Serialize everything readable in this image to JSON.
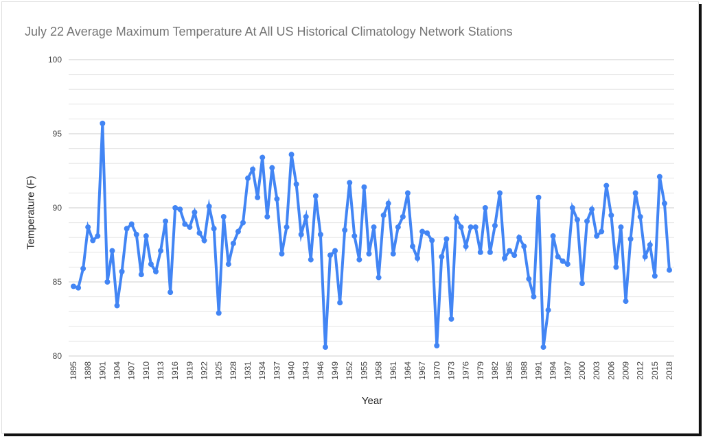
{
  "chart_data": {
    "type": "line",
    "title": "July 22 Average Maximum Temperature At All US Historical Climatology Network Stations",
    "xlabel": "Year",
    "ylabel": "Temperature (F)",
    "ylim": [
      80,
      100
    ],
    "yticks": [
      "80",
      "85",
      "90",
      "95",
      "100"
    ],
    "xticks": [
      "1895",
      "1898",
      "1901",
      "1904",
      "1907",
      "1910",
      "1913",
      "1916",
      "1919",
      "1922",
      "1925",
      "1928",
      "1931",
      "1934",
      "1937",
      "1940",
      "1943",
      "1946",
      "1949",
      "1952",
      "1955",
      "1958",
      "1961",
      "1964",
      "1967",
      "1970",
      "1973",
      "1976",
      "1979",
      "1982",
      "1985",
      "1988",
      "1991",
      "1994",
      "1997",
      "2000",
      "2003",
      "2006",
      "2009",
      "2012",
      "2015",
      "2018"
    ],
    "grid": true,
    "color": "#4285f4",
    "x_start": 1895,
    "values": [
      84.7,
      84.6,
      85.9,
      88.7,
      87.8,
      88.1,
      95.7,
      85.0,
      87.1,
      83.4,
      85.7,
      88.6,
      88.9,
      88.2,
      85.5,
      88.1,
      86.2,
      85.7,
      87.1,
      89.1,
      84.3,
      90.0,
      89.9,
      88.9,
      88.7,
      89.7,
      88.3,
      87.8,
      90.1,
      88.6,
      82.9,
      89.4,
      86.2,
      87.6,
      88.4,
      89.0,
      92.0,
      92.6,
      90.7,
      93.4,
      89.4,
      92.7,
      90.6,
      86.9,
      88.7,
      93.6,
      91.6,
      88.2,
      89.4,
      86.5,
      90.8,
      88.2,
      80.6,
      86.8,
      87.1,
      83.6,
      88.5,
      91.7,
      88.1,
      86.5,
      91.4,
      86.9,
      88.7,
      85.3,
      89.5,
      90.3,
      86.9,
      88.7,
      89.4,
      91.0,
      87.4,
      86.6,
      88.4,
      88.3,
      87.8,
      80.7,
      86.7,
      87.9,
      82.5,
      89.3,
      88.7,
      87.4,
      88.7,
      88.7,
      87.0,
      90.0,
      87.0,
      88.8,
      91.0,
      86.6,
      87.1,
      86.8,
      88.0,
      87.4,
      85.2,
      84.0,
      90.7,
      80.6,
      83.1,
      88.1,
      86.7,
      86.4,
      86.2,
      90.0,
      89.2,
      84.9,
      89.1,
      89.9,
      88.1,
      88.4,
      91.5,
      89.5,
      86.0,
      88.7,
      83.7,
      87.9,
      91.0,
      89.4,
      86.7,
      87.5,
      85.4,
      92.1,
      90.3,
      85.8
    ]
  }
}
